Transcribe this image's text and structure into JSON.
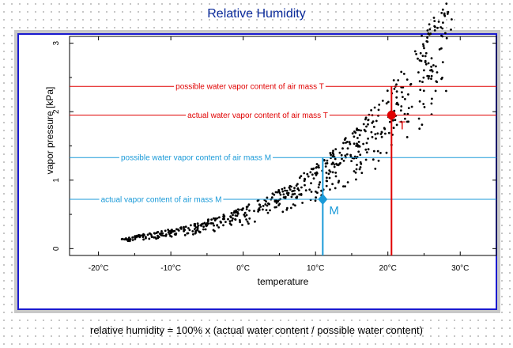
{
  "page": {
    "title": "Relative Humidity",
    "footer": "relative humidity = 100% x (actual water content / possible water content)"
  },
  "chart_data": {
    "type": "scatter",
    "title": "Relative Humidity",
    "xlabel": "temperature",
    "ylabel": "vapor pressure [kPa]",
    "xlim": [
      -24,
      35
    ],
    "ylim": [
      -0.1,
      3.1
    ],
    "x_ticks": [
      -20,
      -10,
      0,
      10,
      20,
      30
    ],
    "x_tick_labels": [
      "-20°C",
      "-10°C",
      "0°C",
      "10°C",
      "20°C",
      "30°C"
    ],
    "y_ticks": [
      0,
      1,
      2,
      3
    ],
    "y_tick_labels": [
      "0",
      "1",
      "2",
      "3"
    ],
    "grid": false,
    "point_color": "#000000",
    "x_range": [
      -17,
      29
    ],
    "curve": {
      "a": 0.611,
      "b": 17.27,
      "c": 237.3
    },
    "reference_lines": [
      {
        "id": "T_possible",
        "y": 2.37,
        "label": "possible water vapor content of air mass T",
        "color": "#e00000"
      },
      {
        "id": "T_actual",
        "y": 1.95,
        "label": "actual water vapor content of air mass T",
        "color": "#e00000"
      },
      {
        "id": "M_possible",
        "y": 1.33,
        "label": "possible water vapor content of air mass M",
        "color": "#1a9ad8"
      },
      {
        "id": "M_actual",
        "y": 0.72,
        "label": "actual  vapor content of air mass M",
        "color": "#1a9ad8"
      }
    ],
    "points": [
      {
        "id": "T",
        "label": "T",
        "x": 20.5,
        "y": 1.95,
        "color": "#e00000"
      },
      {
        "id": "M",
        "label": "M",
        "x": 11.0,
        "y": 0.72,
        "color": "#1a9ad8"
      }
    ]
  }
}
